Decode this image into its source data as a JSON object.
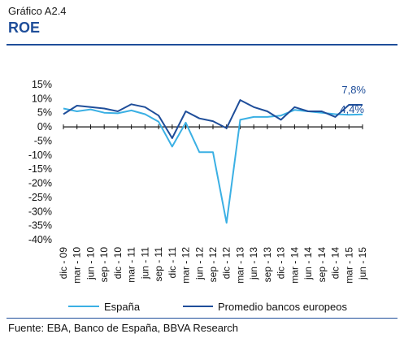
{
  "header": {
    "caption": "Gráfico A2.4",
    "title": "ROE"
  },
  "source": "Fuente: EBA, Banco de España, BBVA Research",
  "colors": {
    "espana": "#3BB0E4",
    "europa": "#1F4E9A",
    "rule": "#1F4E9A",
    "annotation": "#1F4E9A"
  },
  "chart_data": {
    "type": "line",
    "ylim": [
      -40,
      15
    ],
    "yticks": [
      15,
      10,
      5,
      0,
      -5,
      -10,
      -15,
      -20,
      -25,
      -30,
      -35,
      -40
    ],
    "ytick_labels": [
      "15%",
      "10%",
      "5%",
      "0%",
      "-5%",
      "-10%",
      "-15%",
      "-20%",
      "-25%",
      "-30%",
      "-35%",
      "-40%"
    ],
    "x": [
      "dic - 09",
      "mar - 10",
      "jun - 10",
      "sep - 10",
      "dic - 10",
      "mar - 11",
      "jun - 11",
      "sep - 11",
      "dic - 11",
      "mar - 12",
      "jun - 12",
      "sep - 12",
      "dic - 12",
      "mar - 13",
      "jun - 13",
      "sep - 13",
      "dic - 13",
      "mar - 14",
      "jun - 14",
      "sep - 14",
      "dic - 14",
      "mar - 15",
      "jun - 15"
    ],
    "series": [
      {
        "name": "España",
        "color": "#3BB0E4",
        "values": [
          6.5,
          5.5,
          6.2,
          5.0,
          4.8,
          5.8,
          4.5,
          1.8,
          -7.0,
          1.5,
          -9.0,
          -9.0,
          -34.0,
          2.5,
          3.5,
          3.5,
          4.0,
          6.0,
          5.5,
          5.0,
          4.5,
          4.3,
          4.4
        ]
      },
      {
        "name": "Promedio bancos europeos",
        "color": "#1F4E9A",
        "values": [
          4.5,
          7.5,
          7.0,
          6.5,
          5.5,
          8.0,
          7.0,
          4.0,
          -4.0,
          5.5,
          3.0,
          2.0,
          -0.5,
          9.5,
          7.0,
          5.5,
          2.5,
          7.0,
          5.5,
          5.5,
          3.5,
          7.8,
          7.8
        ]
      }
    ],
    "annotations": [
      "7,8%",
      "4,4%"
    ],
    "legend_position": "bottom",
    "grid": false
  }
}
